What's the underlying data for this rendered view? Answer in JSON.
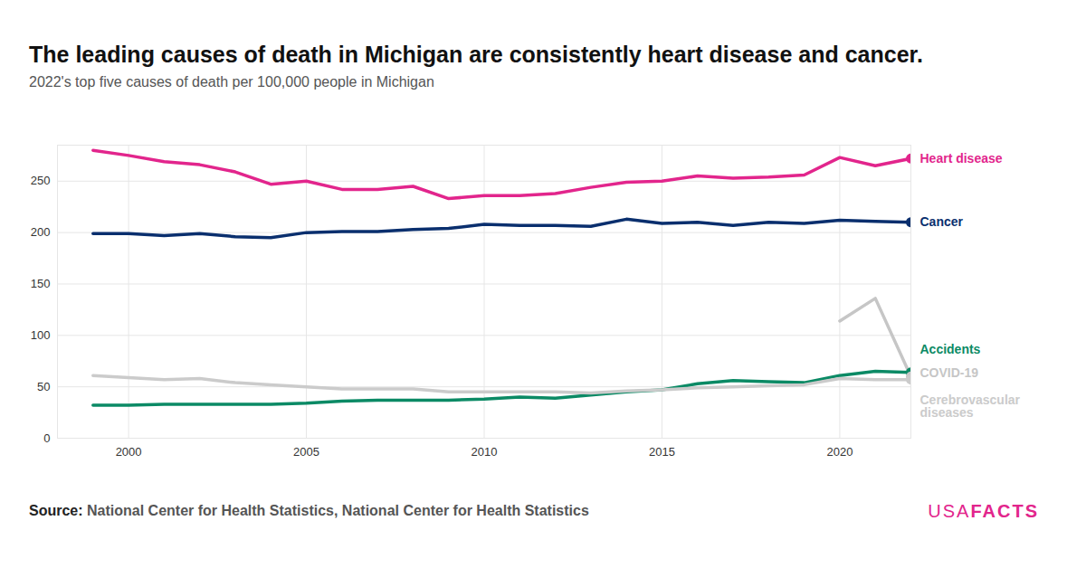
{
  "chart_data": {
    "type": "line",
    "title": "The leading causes of death in Michigan are consistently heart disease and cancer.",
    "subtitle": "2022's top five causes of death per 100,000 people in Michigan",
    "source_label": "Source:",
    "source": "National Center for Health Statistics, National Center for Health Statistics",
    "logo": [
      "USA",
      "FACTS"
    ],
    "x": [
      1999,
      2000,
      2001,
      2002,
      2003,
      2004,
      2005,
      2006,
      2007,
      2008,
      2009,
      2010,
      2011,
      2012,
      2013,
      2014,
      2015,
      2016,
      2017,
      2018,
      2019,
      2020,
      2021,
      2022
    ],
    "xlim": [
      1998,
      2022
    ],
    "xticks": [
      2000,
      2005,
      2010,
      2015,
      2020
    ],
    "ylim": [
      0,
      285
    ],
    "yticks": [
      0,
      50,
      100,
      150,
      200,
      250
    ],
    "grid": true,
    "series": [
      {
        "name": "Heart disease",
        "color": "#e2258c",
        "values": [
          280,
          275,
          269,
          266,
          259,
          247,
          250,
          242,
          242,
          245,
          233,
          236,
          236,
          238,
          244,
          249,
          250,
          255,
          253,
          254,
          256,
          273,
          265,
          272
        ]
      },
      {
        "name": "Cancer",
        "color": "#0a2f6e",
        "values": [
          199,
          199,
          197,
          199,
          196,
          195,
          200,
          201,
          201,
          203,
          204,
          208,
          207,
          207,
          206,
          213,
          209,
          210,
          207,
          210,
          209,
          212,
          211,
          210
        ]
      },
      {
        "name": "Accidents",
        "color": "#0b8a65",
        "values": [
          32,
          32,
          33,
          33,
          33,
          33,
          34,
          36,
          37,
          37,
          37,
          38,
          40,
          39,
          42,
          45,
          47,
          53,
          56,
          55,
          54,
          61,
          65,
          64
        ]
      },
      {
        "name": "COVID-19",
        "color": "#c6c6c6",
        "values": [
          null,
          null,
          null,
          null,
          null,
          null,
          null,
          null,
          null,
          null,
          null,
          null,
          null,
          null,
          null,
          null,
          null,
          null,
          null,
          null,
          null,
          114,
          136,
          60
        ]
      },
      {
        "name": "Cerebrovascular diseases",
        "color": "#cbcbcb",
        "values": [
          61,
          59,
          57,
          58,
          54,
          52,
          50,
          48,
          48,
          48,
          45,
          45,
          45,
          45,
          44,
          46,
          47,
          49,
          50,
          51,
          52,
          58,
          57,
          57
        ]
      }
    ]
  }
}
